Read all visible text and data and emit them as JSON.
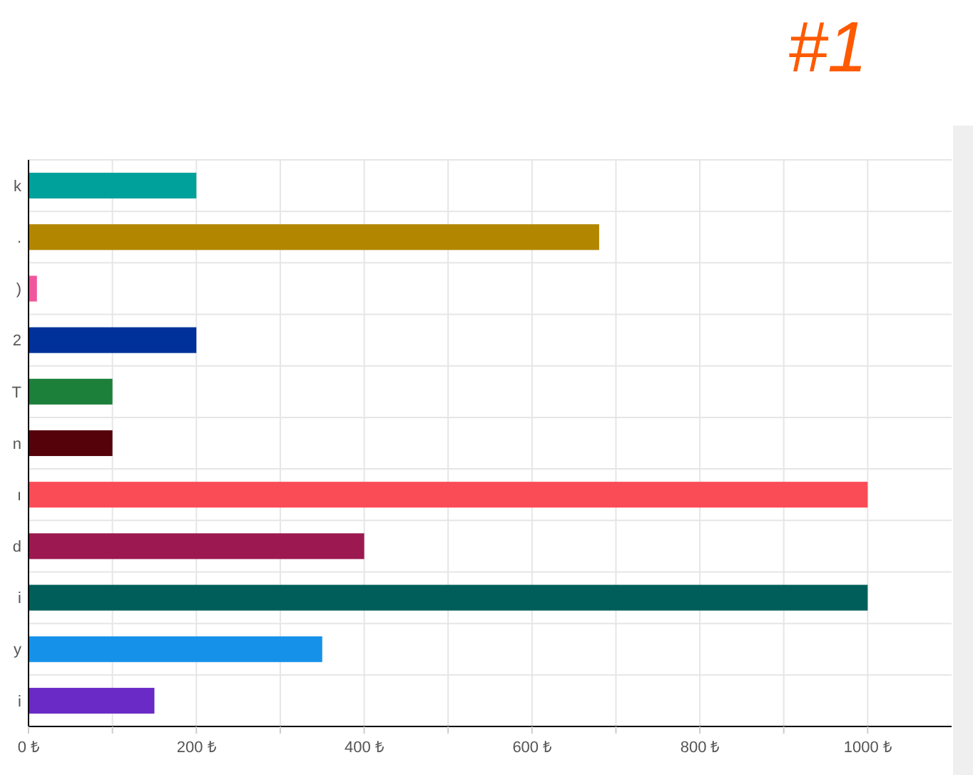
{
  "chart_data": {
    "type": "bar",
    "orientation": "horizontal",
    "categories": [
      "k",
      ".",
      ")",
      "2",
      "T",
      "n",
      "ı",
      "d",
      "i",
      "y",
      "i"
    ],
    "values": [
      200,
      680,
      10,
      200,
      100,
      100,
      1000,
      400,
      1000,
      350,
      150
    ],
    "colors": [
      "#00a19a",
      "#b38600",
      "#f0569b",
      "#00309a",
      "#1c7f3a",
      "#55020b",
      "#fa4c56",
      "#9c1850",
      "#005e5a",
      "#1591ea",
      "#6a2ac6"
    ],
    "xlim": [
      0,
      1100
    ],
    "xticks": [
      {
        "value": 0,
        "label": "0 ₺"
      },
      {
        "value": 100,
        "label": null
      },
      {
        "value": 200,
        "label": "200 ₺"
      },
      {
        "value": 300,
        "label": null
      },
      {
        "value": 400,
        "label": "400 ₺"
      },
      {
        "value": 500,
        "label": null
      },
      {
        "value": 600,
        "label": "600 ₺"
      },
      {
        "value": 700,
        "label": null
      },
      {
        "value": 800,
        "label": "800 ₺"
      },
      {
        "value": 900,
        "label": null
      },
      {
        "value": 1000,
        "label": "1000 ₺"
      }
    ],
    "grid": true,
    "annotations": [
      "#1"
    ]
  }
}
